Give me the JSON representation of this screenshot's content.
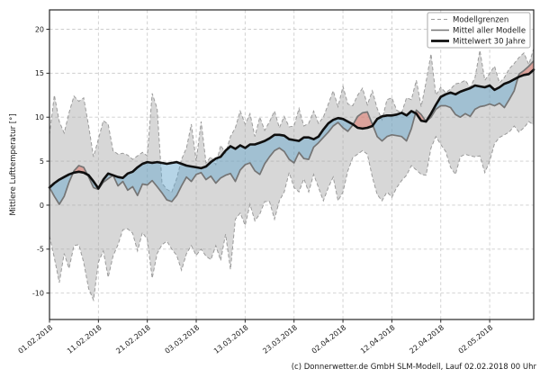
{
  "figure": {
    "background": "#ffffff"
  },
  "axes": {
    "ylabel": "Mittlere Lufttemperatur [°]",
    "y_ticks": [
      20,
      15,
      10,
      5,
      0,
      -5,
      -10
    ],
    "x_ticks": [
      {
        "day": 0,
        "label": "01.02.2018"
      },
      {
        "day": 10,
        "label": "11.02.2018"
      },
      {
        "day": 20,
        "label": "21.02.2018"
      },
      {
        "day": 30,
        "label": "03.03.2018"
      },
      {
        "day": 40,
        "label": "13.03.2018"
      },
      {
        "day": 50,
        "label": "23.03.2018"
      },
      {
        "day": 60,
        "label": "02.04.2018"
      },
      {
        "day": 70,
        "label": "12.04.2018"
      },
      {
        "day": 80,
        "label": "22.04.2018"
      },
      {
        "day": 90,
        "label": "02.05.2018"
      }
    ],
    "ylim": [
      -13,
      22.2
    ],
    "xlim_days": [
      0,
      99
    ]
  },
  "legend": {
    "items": [
      {
        "label": "Modellgrenzen",
        "style": "dashed-gray"
      },
      {
        "label": "Mittel aller Modelle",
        "style": "solid-gray"
      },
      {
        "label": "Mittelwert 30 Jahre",
        "style": "thick-black"
      }
    ]
  },
  "footer": {
    "credit": "(c) Donnerwetter.de GmbH SLM-Modell, Lauf 02.02.2018 00 Uhr"
  },
  "colors": {
    "band_fill": "rgba(160,160,160,0.42)",
    "band_edge": "#9b9b9b",
    "below_fill": "rgba(100,165,205,0.47)",
    "above_fill": "rgba(225,110,95,0.5)",
    "model_mean": "#757575",
    "climatology": "#0f0f0f",
    "grid": "#cdcdcd",
    "spine": "#262626",
    "text": "#1a1a1a",
    "legend_border": "#aaaaaa"
  },
  "chart_data": {
    "type": "line",
    "title": "",
    "ylabel": "Mittlere Lufttemperatur [°]",
    "x_start_date": "01.02.2018",
    "x_step_days": 1,
    "x_unit": "days since 01.02.2018",
    "ylim": [
      -13,
      22.2
    ],
    "grid": true,
    "legend_position": "upper right",
    "series": [
      {
        "name": "Modellgrenzen (Obergrenze)",
        "role": "upper_bound",
        "values": [
          8.0,
          12.5,
          9.5,
          8.2,
          10.5,
          12.4,
          11.8,
          12.2,
          9.0,
          5.5,
          7.5,
          9.6,
          9.2,
          6.2,
          5.8,
          5.9,
          5.7,
          5.2,
          5.6,
          6.0,
          5.6,
          12.7,
          11.0,
          2.5,
          1.8,
          1.5,
          3.0,
          5.2,
          6.5,
          9.2,
          5.0,
          9.5,
          4.8,
          5.5,
          4.6,
          6.8,
          5.9,
          7.8,
          8.8,
          10.7,
          9.2,
          10.4,
          7.8,
          10.0,
          8.5,
          9.5,
          10.7,
          8.8,
          10.1,
          8.9,
          9.0,
          11.0,
          9.0,
          9.3,
          10.7,
          9.3,
          10.0,
          11.5,
          13.0,
          11.2,
          13.5,
          11.5,
          11.3,
          12.5,
          13.3,
          11.4,
          13.0,
          11.0,
          9.7,
          12.0,
          12.2,
          10.8,
          10.5,
          12.2,
          12.0,
          14.2,
          11.2,
          14.0,
          17.2,
          12.5,
          13.4,
          12.8,
          13.2,
          13.8,
          13.9,
          14.2,
          13.4,
          14.5,
          17.6,
          14.2,
          15.0,
          15.8,
          13.9,
          14.5,
          15.5,
          16.1,
          16.8,
          17.3,
          16.0,
          17.8
        ]
      },
      {
        "name": "Modellgrenzen (Untergrenze)",
        "role": "lower_bound",
        "values": [
          -3.5,
          -6.0,
          -8.8,
          -5.5,
          -7.2,
          -4.6,
          -4.5,
          -6.5,
          -9.5,
          -10.8,
          -6.5,
          -5.2,
          -8.2,
          -5.8,
          -4.5,
          -2.8,
          -2.7,
          -3.2,
          -5.2,
          -3.1,
          -3.9,
          -8.3,
          -5.5,
          -4.5,
          -4.1,
          -5.0,
          -5.7,
          -7.4,
          -5.5,
          -4.6,
          -5.7,
          -5.0,
          -5.8,
          -6.2,
          -4.6,
          -6.3,
          -3.3,
          -7.3,
          -1.6,
          -0.9,
          -2.3,
          0.1,
          -1.8,
          -1.0,
          0.4,
          0.4,
          -1.6,
          0.5,
          1.5,
          3.7,
          2.0,
          1.5,
          3.0,
          1.5,
          3.5,
          2.0,
          0.5,
          2.0,
          3.2,
          0.5,
          1.5,
          3.9,
          5.4,
          5.8,
          6.2,
          5.8,
          3.2,
          1.2,
          0.5,
          1.5,
          0.9,
          2.0,
          2.8,
          3.4,
          4.5,
          4.0,
          3.5,
          3.4,
          6.5,
          7.8,
          6.9,
          6.1,
          4.3,
          3.5,
          5.5,
          5.8,
          5.6,
          5.5,
          5.6,
          3.7,
          5.0,
          7.0,
          7.7,
          8.0,
          8.3,
          9.0,
          8.3,
          8.8,
          9.5,
          9.1
        ]
      },
      {
        "name": "Mittel aller Modelle",
        "role": "model_mean",
        "values": [
          2.0,
          1.0,
          0.1,
          1.0,
          2.6,
          3.9,
          4.5,
          4.3,
          3.2,
          2.0,
          1.8,
          2.6,
          3.0,
          3.4,
          2.2,
          2.7,
          1.7,
          2.1,
          1.1,
          2.4,
          2.3,
          2.8,
          2.1,
          1.4,
          0.6,
          0.4,
          1.1,
          2.2,
          3.2,
          2.7,
          3.5,
          3.7,
          2.9,
          3.3,
          2.5,
          3.1,
          3.4,
          3.6,
          2.7,
          4.0,
          4.6,
          4.8,
          3.9,
          3.5,
          4.7,
          5.5,
          6.2,
          6.5,
          6.1,
          5.2,
          4.8,
          6.0,
          5.3,
          5.2,
          6.6,
          7.1,
          7.7,
          8.3,
          9.0,
          9.4,
          8.8,
          8.4,
          9.1,
          10.1,
          10.5,
          10.6,
          9.2,
          7.8,
          7.3,
          7.8,
          8.0,
          7.9,
          7.8,
          7.3,
          8.7,
          10.8,
          10.3,
          9.5,
          10.0,
          10.9,
          11.3,
          11.3,
          11.1,
          10.3,
          10.0,
          10.4,
          10.1,
          10.9,
          11.2,
          11.3,
          11.5,
          11.3,
          11.6,
          11.1,
          12.0,
          13.0,
          14.9,
          15.3,
          15.8,
          16.4
        ]
      },
      {
        "name": "Mittelwert 30 Jahre",
        "role": "climatology",
        "values": [
          2.0,
          2.5,
          2.9,
          3.2,
          3.5,
          3.7,
          3.8,
          3.7,
          3.4,
          2.7,
          1.9,
          2.9,
          3.6,
          3.4,
          3.2,
          3.1,
          3.6,
          3.8,
          4.3,
          4.7,
          4.9,
          4.8,
          4.9,
          4.8,
          4.7,
          4.8,
          4.9,
          4.7,
          4.5,
          4.4,
          4.3,
          4.2,
          4.4,
          4.9,
          5.3,
          5.5,
          6.2,
          6.7,
          6.4,
          6.8,
          6.5,
          6.9,
          6.9,
          7.1,
          7.3,
          7.6,
          8.0,
          8.0,
          7.9,
          7.5,
          7.4,
          7.3,
          7.7,
          7.7,
          7.5,
          7.8,
          8.6,
          9.3,
          9.7,
          9.9,
          9.8,
          9.5,
          9.2,
          8.8,
          8.7,
          8.8,
          9.0,
          9.8,
          10.1,
          10.2,
          10.2,
          10.3,
          10.5,
          10.2,
          10.7,
          10.4,
          9.6,
          9.5,
          10.4,
          11.4,
          12.3,
          12.6,
          12.8,
          12.6,
          12.9,
          13.1,
          13.3,
          13.6,
          13.5,
          13.4,
          13.6,
          13.1,
          13.4,
          13.8,
          14.0,
          14.3,
          14.6,
          14.8,
          14.9,
          15.4
        ]
      }
    ]
  }
}
